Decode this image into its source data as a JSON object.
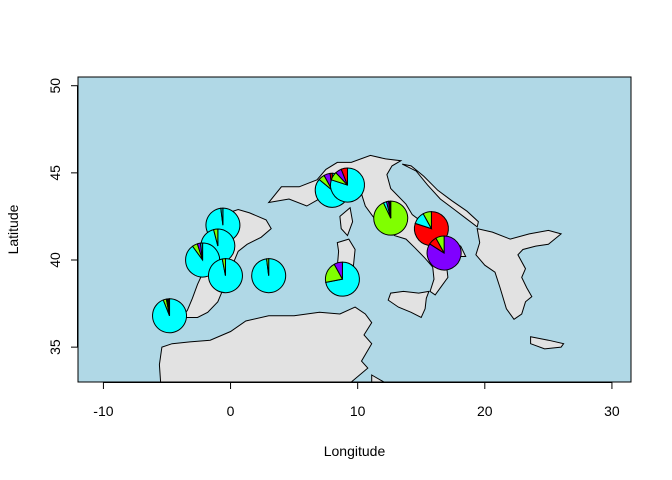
{
  "chart_data": {
    "type": "scatter",
    "title": "",
    "xlabel": "Longitude",
    "ylabel": "Latitude",
    "xlim": [
      -12,
      31.5
    ],
    "ylim": [
      33,
      50.5
    ],
    "xticks": [
      -10,
      0,
      10,
      20,
      30
    ],
    "yticks": [
      35,
      40,
      45,
      50
    ],
    "grid": false,
    "legend": "none",
    "colors": {
      "sea": "#b0d8e6",
      "land": "#e2e2e2",
      "outline": "#000000",
      "cyan": "#00ffff",
      "green": "#80ff00",
      "red": "#ff0000",
      "purple": "#8000ff",
      "teal": "#00bfbf"
    },
    "land": [
      [
        [
          -5.2,
          36.0
        ],
        [
          -4.6,
          36.4
        ],
        [
          -4.0,
          36.6
        ],
        [
          -3.4,
          37.1
        ],
        [
          -3.0,
          37.8
        ],
        [
          -2.6,
          38.6
        ],
        [
          -2.1,
          39.4
        ],
        [
          -1.5,
          40.1
        ],
        [
          -1.1,
          40.9
        ],
        [
          -1.3,
          41.5
        ],
        [
          -0.9,
          42.1
        ],
        [
          -0.2,
          42.7
        ],
        [
          0.6,
          42.9
        ],
        [
          1.5,
          42.7
        ],
        [
          2.8,
          42.3
        ],
        [
          3.2,
          41.8
        ],
        [
          2.4,
          41.3
        ],
        [
          1.3,
          40.9
        ],
        [
          0.6,
          40.5
        ],
        [
          0.2,
          39.8
        ],
        [
          -0.1,
          38.9
        ],
        [
          -0.6,
          38.3
        ],
        [
          -1.0,
          37.6
        ],
        [
          -1.8,
          37.0
        ],
        [
          -2.6,
          36.7
        ],
        [
          -3.6,
          36.7
        ],
        [
          -4.4,
          36.6
        ],
        [
          -4.9,
          36.2
        ]
      ],
      [
        [
          3.0,
          43.3
        ],
        [
          4.6,
          43.5
        ],
        [
          6.0,
          43.1
        ],
        [
          7.2,
          43.6
        ],
        [
          8.2,
          44.1
        ],
        [
          8.8,
          44.4
        ],
        [
          9.6,
          44.2
        ],
        [
          10.3,
          43.8
        ],
        [
          10.6,
          43.1
        ],
        [
          11.2,
          42.5
        ],
        [
          12.0,
          41.9
        ],
        [
          12.9,
          41.4
        ],
        [
          13.8,
          41.2
        ],
        [
          14.5,
          40.7
        ],
        [
          15.3,
          40.1
        ],
        [
          15.9,
          39.6
        ],
        [
          16.0,
          38.9
        ],
        [
          15.7,
          38.2
        ],
        [
          16.1,
          38.0
        ],
        [
          16.6,
          38.5
        ],
        [
          17.1,
          39.0
        ],
        [
          17.0,
          39.6
        ],
        [
          17.8,
          40.2
        ],
        [
          18.5,
          40.2
        ],
        [
          18.1,
          40.8
        ],
        [
          17.1,
          41.1
        ],
        [
          16.0,
          41.6
        ],
        [
          15.2,
          42.1
        ],
        [
          14.3,
          42.6
        ],
        [
          13.8,
          43.2
        ],
        [
          12.6,
          44.1
        ],
        [
          12.3,
          44.9
        ],
        [
          12.7,
          45.4
        ],
        [
          13.4,
          45.7
        ],
        [
          12.2,
          45.8
        ],
        [
          11.0,
          46.0
        ],
        [
          9.5,
          45.6
        ],
        [
          8.4,
          45.6
        ],
        [
          7.5,
          45.2
        ],
        [
          6.8,
          44.6
        ],
        [
          5.4,
          44.2
        ],
        [
          4.0,
          44.2
        ]
      ],
      [
        [
          15.6,
          38.2
        ],
        [
          14.8,
          38.1
        ],
        [
          13.6,
          38.2
        ],
        [
          12.6,
          38.1
        ],
        [
          12.4,
          37.7
        ],
        [
          13.2,
          37.3
        ],
        [
          14.2,
          37.0
        ],
        [
          15.0,
          36.7
        ],
        [
          15.3,
          37.2
        ],
        [
          15.4,
          37.8
        ]
      ],
      [
        [
          8.4,
          41.0
        ],
        [
          9.3,
          41.2
        ],
        [
          9.8,
          40.6
        ],
        [
          9.6,
          39.2
        ],
        [
          9.0,
          39.0
        ],
        [
          8.4,
          39.6
        ],
        [
          8.5,
          40.5
        ]
      ],
      [
        [
          8.6,
          42.5
        ],
        [
          9.4,
          43.0
        ],
        [
          9.6,
          42.2
        ],
        [
          9.2,
          41.4
        ],
        [
          8.7,
          41.8
        ]
      ],
      [
        [
          2.4,
          39.6
        ],
        [
          3.3,
          39.9
        ],
        [
          3.5,
          39.5
        ],
        [
          2.7,
          39.3
        ]
      ],
      [
        [
          13.5,
          45.5
        ],
        [
          14.6,
          45.1
        ],
        [
          15.5,
          44.3
        ],
        [
          16.5,
          43.5
        ],
        [
          17.6,
          42.9
        ],
        [
          18.5,
          42.4
        ],
        [
          19.4,
          41.9
        ],
        [
          19.5,
          42.2
        ],
        [
          18.6,
          42.8
        ],
        [
          17.4,
          43.4
        ],
        [
          16.3,
          44.0
        ],
        [
          15.2,
          44.8
        ],
        [
          14.2,
          45.4
        ]
      ],
      [
        [
          19.4,
          41.8
        ],
        [
          19.6,
          41.0
        ],
        [
          19.3,
          40.3
        ],
        [
          20.0,
          39.7
        ],
        [
          20.8,
          39.3
        ],
        [
          21.2,
          38.4
        ],
        [
          21.7,
          37.2
        ],
        [
          22.3,
          36.6
        ],
        [
          22.9,
          36.9
        ],
        [
          23.2,
          37.6
        ],
        [
          23.7,
          37.9
        ],
        [
          23.3,
          38.4
        ],
        [
          22.9,
          39.0
        ],
        [
          23.2,
          39.5
        ],
        [
          22.6,
          40.3
        ],
        [
          23.0,
          40.6
        ],
        [
          24.0,
          40.8
        ],
        [
          25.0,
          40.9
        ],
        [
          25.5,
          41.2
        ],
        [
          26.0,
          41.5
        ],
        [
          25.0,
          41.7
        ],
        [
          23.5,
          41.5
        ],
        [
          22.0,
          41.2
        ],
        [
          20.6,
          41.6
        ]
      ],
      [
        [
          23.6,
          35.6
        ],
        [
          25.0,
          35.4
        ],
        [
          26.2,
          35.2
        ],
        [
          26.0,
          35.0
        ],
        [
          24.7,
          34.9
        ],
        [
          23.6,
          35.2
        ]
      ],
      [
        [
          -4.6,
          35.2
        ],
        [
          -3.2,
          35.3
        ],
        [
          -1.6,
          35.4
        ],
        [
          0.0,
          35.9
        ],
        [
          1.2,
          36.5
        ],
        [
          3.0,
          36.8
        ],
        [
          5.0,
          36.8
        ],
        [
          7.0,
          37.0
        ],
        [
          8.6,
          36.9
        ],
        [
          9.8,
          37.3
        ],
        [
          10.6,
          36.9
        ],
        [
          11.1,
          36.4
        ],
        [
          10.5,
          35.7
        ],
        [
          11.1,
          35.2
        ],
        [
          10.3,
          34.2
        ],
        [
          10.8,
          33.8
        ],
        [
          9.5,
          33.0
        ],
        [
          8.0,
          33.0
        ],
        [
          6.0,
          33.0
        ],
        [
          4.0,
          33.0
        ],
        [
          2.0,
          33.0
        ],
        [
          0.0,
          33.0
        ],
        [
          -2.0,
          33.0
        ],
        [
          -4.0,
          33.0
        ],
        [
          -5.5,
          33.0
        ],
        [
          -5.6,
          34.0
        ],
        [
          -5.4,
          35.0
        ]
      ],
      [
        [
          11.1,
          33.4
        ],
        [
          12.3,
          32.9
        ],
        [
          13.6,
          33.0
        ],
        [
          15.0,
          32.3
        ],
        [
          15.6,
          31.6
        ],
        [
          18.0,
          30.8
        ],
        [
          19.4,
          30.4
        ],
        [
          20.1,
          31.0
        ],
        [
          19.9,
          31.8
        ],
        [
          20.6,
          32.6
        ],
        [
          22.0,
          32.9
        ],
        [
          23.2,
          32.3
        ],
        [
          24.2,
          32.0
        ],
        [
          25.2,
          31.6
        ],
        [
          25.2,
          33.0
        ],
        [
          11.1,
          33.0
        ]
      ]
    ],
    "pies": [
      {
        "lon": -4.8,
        "lat": 36.8,
        "values": [
          0.94,
          0.03,
          0.03
        ],
        "colors": [
          "#00ffff",
          "#80ff00",
          "#000000"
        ]
      },
      {
        "lon": -0.6,
        "lat": 42.0,
        "values": [
          0.98,
          0.02
        ],
        "colors": [
          "#00ffff",
          "#00bfbf"
        ]
      },
      {
        "lon": -1.0,
        "lat": 40.8,
        "values": [
          0.96,
          0.04
        ],
        "colors": [
          "#00ffff",
          "#80ff00"
        ]
      },
      {
        "lon": -2.2,
        "lat": 40.0,
        "values": [
          0.9,
          0.05,
          0.03,
          0.02
        ],
        "colors": [
          "#00ffff",
          "#80ff00",
          "#8000ff",
          "#00bfbf"
        ]
      },
      {
        "lon": -0.4,
        "lat": 39.1,
        "values": [
          0.97,
          0.03
        ],
        "colors": [
          "#00ffff",
          "#80ff00"
        ]
      },
      {
        "lon": 3.0,
        "lat": 39.1,
        "values": [
          0.98,
          0.02
        ],
        "colors": [
          "#00ffff",
          "#80ff00"
        ]
      },
      {
        "lon": 8.0,
        "lat": 44.0,
        "values": [
          0.86,
          0.06,
          0.06,
          0.02
        ],
        "colors": [
          "#00ffff",
          "#80ff00",
          "#8000ff",
          "#ff0000"
        ]
      },
      {
        "lon": 9.2,
        "lat": 44.3,
        "values": [
          0.8,
          0.08,
          0.06,
          0.06
        ],
        "colors": [
          "#00ffff",
          "#80ff00",
          "#8000ff",
          "#ff0000"
        ]
      },
      {
        "lon": 8.8,
        "lat": 38.9,
        "values": [
          0.72,
          0.2,
          0.08
        ],
        "colors": [
          "#00ffff",
          "#80ff00",
          "#8000ff"
        ]
      },
      {
        "lon": 12.6,
        "lat": 42.4,
        "values": [
          0.93,
          0.03,
          0.02,
          0.02
        ],
        "colors": [
          "#80ff00",
          "#00ffff",
          "#8000ff",
          "#000000"
        ]
      },
      {
        "lon": 15.8,
        "lat": 41.8,
        "values": [
          0.8,
          0.12,
          0.08
        ],
        "colors": [
          "#ff0000",
          "#00ffff",
          "#80ff00"
        ]
      },
      {
        "lon": 16.8,
        "lat": 40.4,
        "values": [
          0.84,
          0.08,
          0.08
        ],
        "colors": [
          "#8000ff",
          "#ff0000",
          "#80ff00"
        ]
      }
    ]
  }
}
